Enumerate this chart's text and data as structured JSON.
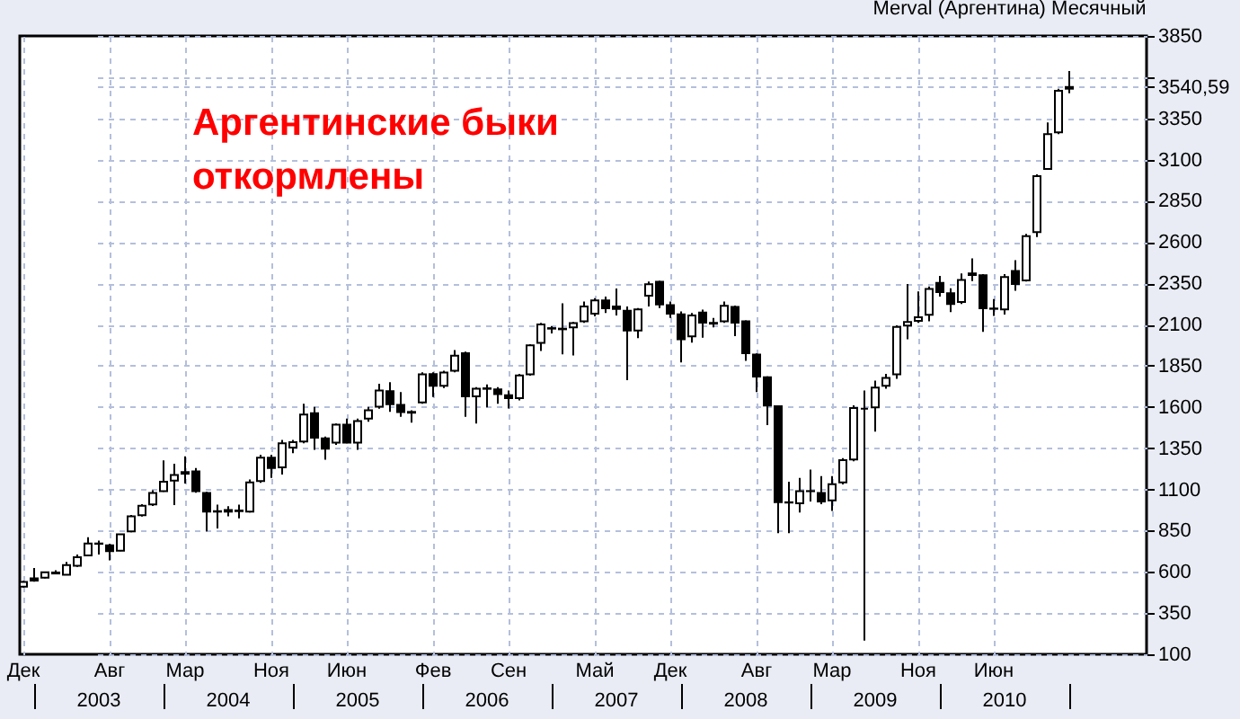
{
  "chart_data": {
    "type": "candlestick",
    "title": "Аргентинские быки\nоткормлены",
    "subtitle": "Merval (Аргентина) Месячный",
    "categories": [
      "Дек",
      null,
      null,
      null,
      null,
      null,
      null,
      null,
      "Авг",
      null,
      null,
      null,
      null,
      null,
      null,
      "Мар",
      null,
      null,
      null,
      null,
      null,
      null,
      null,
      "Ноя",
      null,
      null,
      null,
      null,
      null,
      null,
      "Июн",
      null,
      null,
      null,
      null,
      null,
      null,
      null,
      "Фев",
      null,
      null,
      null,
      null,
      null,
      null,
      "Сен",
      null,
      null,
      null,
      null,
      null,
      null,
      null,
      "Май",
      null,
      null,
      null,
      null,
      null,
      null,
      "Дек",
      null,
      null,
      null,
      null,
      null,
      null,
      null,
      "Авг",
      null,
      null,
      null,
      null,
      null,
      null,
      "Мар",
      null,
      null,
      null,
      null,
      null,
      null,
      null,
      "Ноя",
      null,
      null,
      null,
      null,
      null,
      null,
      "Июн",
      null,
      null,
      null,
      null,
      null,
      null,
      null
    ],
    "ohlc": [
      [
        510,
        545,
        505,
        539
      ],
      [
        560,
        623,
        540,
        547
      ],
      [
        565,
        600,
        560,
        597
      ],
      [
        590,
        610,
        585,
        596
      ],
      [
        583,
        660,
        580,
        641
      ],
      [
        637,
        705,
        630,
        688
      ],
      [
        699,
        810,
        695,
        772
      ],
      [
        770,
        790,
        705,
        772
      ],
      [
        761,
        770,
        670,
        725
      ],
      [
        728,
        830,
        725,
        827
      ],
      [
        845,
        945,
        840,
        936
      ],
      [
        943,
        1010,
        935,
        1001
      ],
      [
        1009,
        1095,
        1000,
        1078
      ],
      [
        1089,
        1276,
        1085,
        1147
      ],
      [
        1154,
        1255,
        1005,
        1187
      ],
      [
        1205,
        1300,
        1136,
        1195
      ],
      [
        1209,
        1230,
        1080,
        1089
      ],
      [
        1078,
        1085,
        845,
        965
      ],
      [
        965,
        1008,
        863,
        968
      ],
      [
        965,
        998,
        936,
        975
      ],
      [
        972,
        1008,
        925,
        968
      ],
      [
        965,
        1160,
        960,
        1143
      ],
      [
        1150,
        1310,
        1140,
        1292
      ],
      [
        1292,
        1310,
        1170,
        1230
      ],
      [
        1234,
        1400,
        1190,
        1380
      ],
      [
        1354,
        1400,
        1320,
        1387
      ],
      [
        1391,
        1620,
        1380,
        1554
      ],
      [
        1562,
        1600,
        1340,
        1413
      ],
      [
        1409,
        1420,
        1280,
        1347
      ],
      [
        1383,
        1500,
        1370,
        1493
      ],
      [
        1493,
        1530,
        1380,
        1383
      ],
      [
        1383,
        1530,
        1340,
        1514
      ],
      [
        1529,
        1600,
        1510,
        1580
      ],
      [
        1602,
        1740,
        1590,
        1700
      ],
      [
        1696,
        1750,
        1570,
        1616
      ],
      [
        1613,
        1690,
        1540,
        1569
      ],
      [
        1570,
        1580,
        1505,
        1565
      ],
      [
        1627,
        1810,
        1620,
        1798
      ],
      [
        1799,
        1810,
        1660,
        1729
      ],
      [
        1729,
        1820,
        1715,
        1809
      ],
      [
        1820,
        1945,
        1810,
        1911
      ],
      [
        1926,
        1935,
        1540,
        1664
      ],
      [
        1664,
        1720,
        1500,
        1711
      ],
      [
        1710,
        1736,
        1598,
        1713
      ],
      [
        1707,
        1720,
        1620,
        1678
      ],
      [
        1671,
        1700,
        1591,
        1653
      ],
      [
        1653,
        1800,
        1640,
        1791
      ],
      [
        1798,
        1980,
        1790,
        1973
      ],
      [
        1988,
        2110,
        1940,
        2100
      ],
      [
        2075,
        2090,
        2046,
        2078
      ],
      [
        2071,
        2228,
        1919,
        2075
      ],
      [
        2082,
        2115,
        1912,
        2108
      ],
      [
        2119,
        2240,
        2110,
        2210
      ],
      [
        2166,
        2260,
        2150,
        2246
      ],
      [
        2246,
        2270,
        2170,
        2199
      ],
      [
        2210,
        2319,
        2155,
        2195
      ],
      [
        2184,
        2210,
        1762,
        2064
      ],
      [
        2064,
        2200,
        2017,
        2191
      ],
      [
        2275,
        2360,
        2210,
        2344
      ],
      [
        2359,
        2365,
        2200,
        2221
      ],
      [
        2217,
        2240,
        2140,
        2166
      ],
      [
        2162,
        2180,
        1870,
        2010
      ],
      [
        2028,
        2170,
        1990,
        2155
      ],
      [
        2173,
        2190,
        2020,
        2111
      ],
      [
        2105,
        2140,
        2082,
        2110
      ],
      [
        2119,
        2240,
        2110,
        2213
      ],
      [
        2206,
        2215,
        2030,
        2111
      ],
      [
        2119,
        2125,
        1880,
        1926
      ],
      [
        1918,
        1925,
        1690,
        1784
      ],
      [
        1780,
        1785,
        1490,
        1609
      ],
      [
        1605,
        1610,
        835,
        1023
      ],
      [
        1022,
        1147,
        834,
        1020
      ],
      [
        1016,
        1170,
        960,
        1089
      ],
      [
        1090,
        1220,
        1027,
        1089
      ],
      [
        1078,
        1180,
        1010,
        1027
      ],
      [
        1034,
        1180,
        970,
        1132
      ],
      [
        1143,
        1290,
        1130,
        1278
      ],
      [
        1282,
        1610,
        1270,
        1594
      ],
      [
        1590,
        1700,
        183,
        1590
      ],
      [
        1598,
        1760,
        1450,
        1718
      ],
      [
        1729,
        1800,
        1710,
        1776
      ],
      [
        1798,
        2095,
        1770,
        2086
      ],
      [
        2093,
        2345,
        2010,
        2115
      ],
      [
        2122,
        2300,
        2110,
        2144
      ],
      [
        2159,
        2330,
        2120,
        2316
      ],
      [
        2352,
        2395,
        2270,
        2297
      ],
      [
        2290,
        2320,
        2175,
        2225
      ],
      [
        2236,
        2410,
        2225,
        2370
      ],
      [
        2410,
        2501,
        2363,
        2400
      ],
      [
        2399,
        2405,
        2055,
        2199
      ],
      [
        2197,
        2254,
        2152,
        2195
      ],
      [
        2192,
        2405,
        2160,
        2388
      ],
      [
        2425,
        2490,
        2305,
        2345
      ],
      [
        2367,
        2650,
        2360,
        2636
      ],
      [
        2661,
        3010,
        2630,
        3000
      ],
      [
        3043,
        3325,
        3040,
        3255
      ],
      [
        3265,
        3530,
        3255,
        3517
      ],
      [
        3530,
        3637,
        3503,
        3540.59
      ]
    ],
    "ylim": [
      100,
      3850
    ],
    "yticks": [
      100,
      350,
      600,
      850,
      1100,
      1350,
      1600,
      1850,
      2100,
      2350,
      2600,
      2850,
      3100,
      3350,
      {
        "value": 3540.59,
        "label": "3540,59"
      },
      {
        "value": 3600,
        "label": null
      },
      3850
    ],
    "grid": true,
    "annotations": [
      "2003",
      "2004",
      "2005",
      "2006",
      "2007",
      "2008",
      "2009",
      "2010"
    ]
  }
}
